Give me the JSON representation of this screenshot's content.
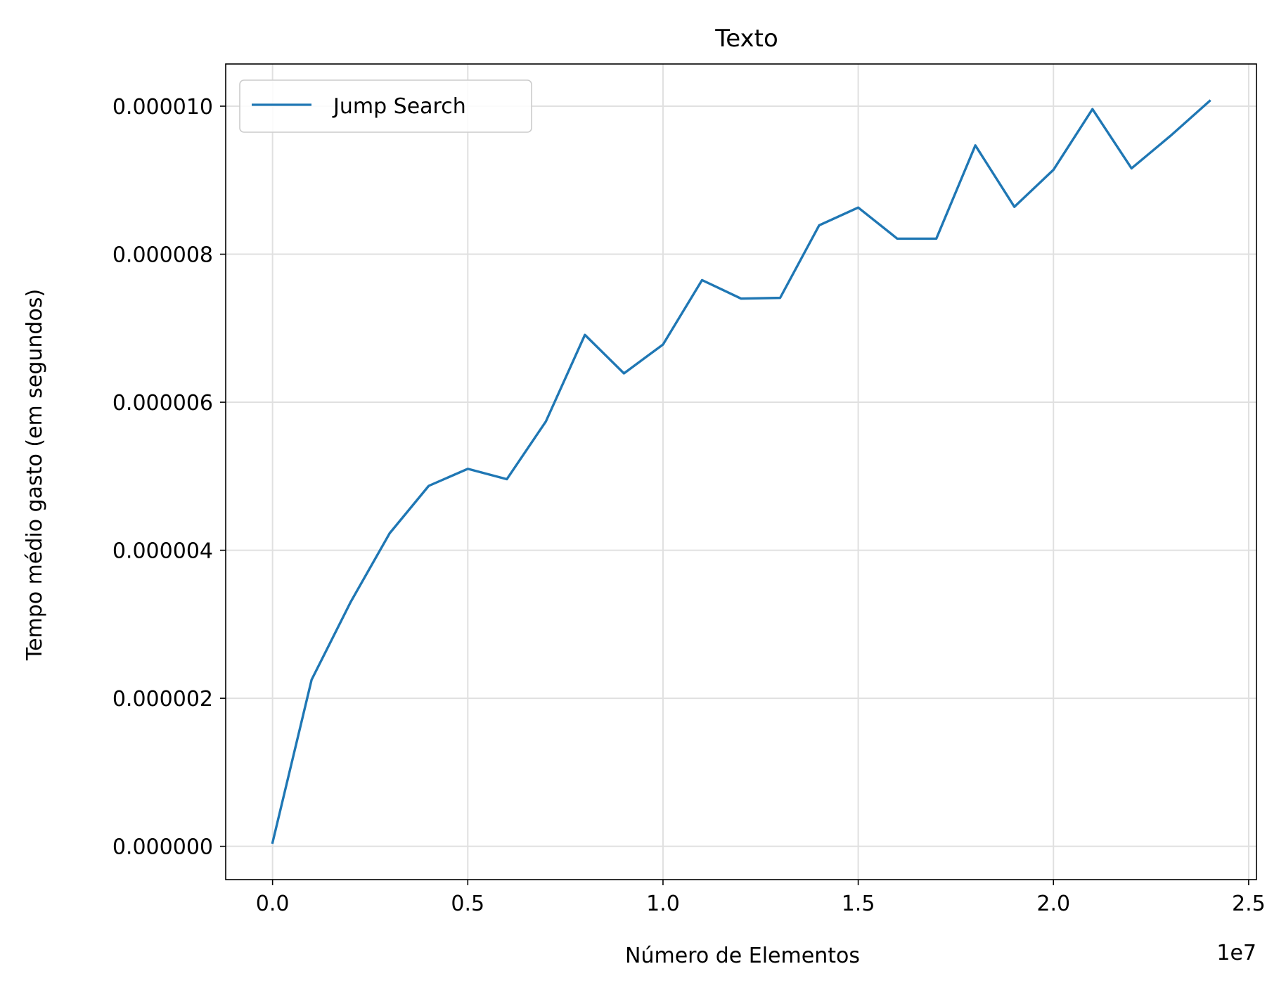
{
  "chart_data": {
    "type": "line",
    "title": "Texto",
    "xlabel": "Número de Elementos",
    "ylabel": "Tempo médio gasto (em segundos)",
    "x_offset_label": "1e7",
    "xlim": [
      -1200000,
      25200000
    ],
    "ylim": [
      -4.5e-07,
      1.057e-05
    ],
    "x_ticks": [
      0,
      5000000,
      10000000,
      15000000,
      20000000,
      25000000
    ],
    "x_tick_labels": [
      "0.0",
      "0.5",
      "1.0",
      "1.5",
      "2.0",
      "2.5"
    ],
    "y_ticks": [
      0,
      2e-06,
      4e-06,
      6e-06,
      8e-06,
      1e-05
    ],
    "y_tick_labels": [
      "0.000000",
      "0.000002",
      "0.000004",
      "0.000006",
      "0.000008",
      "0.000010"
    ],
    "grid": true,
    "legend_position": "upper-left",
    "series": [
      {
        "name": "Jump Search",
        "color": "#1f77b4",
        "x": [
          0,
          1000000,
          2000000,
          3000000,
          4000000,
          5000000,
          6000000,
          7000000,
          8000000,
          9000000,
          10000000,
          11000000,
          12000000,
          13000000,
          14000000,
          15000000,
          16000000,
          17000000,
          18000000,
          19000000,
          20000000,
          21000000,
          22000000,
          23000000,
          24000000
        ],
        "y": [
          5e-08,
          2.25e-06,
          3.3e-06,
          4.23e-06,
          4.87e-06,
          5.1e-06,
          4.96e-06,
          5.74e-06,
          6.91e-06,
          6.39e-06,
          6.78e-06,
          7.65e-06,
          7.4e-06,
          7.41e-06,
          8.39e-06,
          8.63e-06,
          8.21e-06,
          8.21e-06,
          9.47e-06,
          8.64e-06,
          9.14e-06,
          9.96e-06,
          9.16e-06,
          9.6e-06,
          1.007e-05
        ]
      }
    ]
  }
}
